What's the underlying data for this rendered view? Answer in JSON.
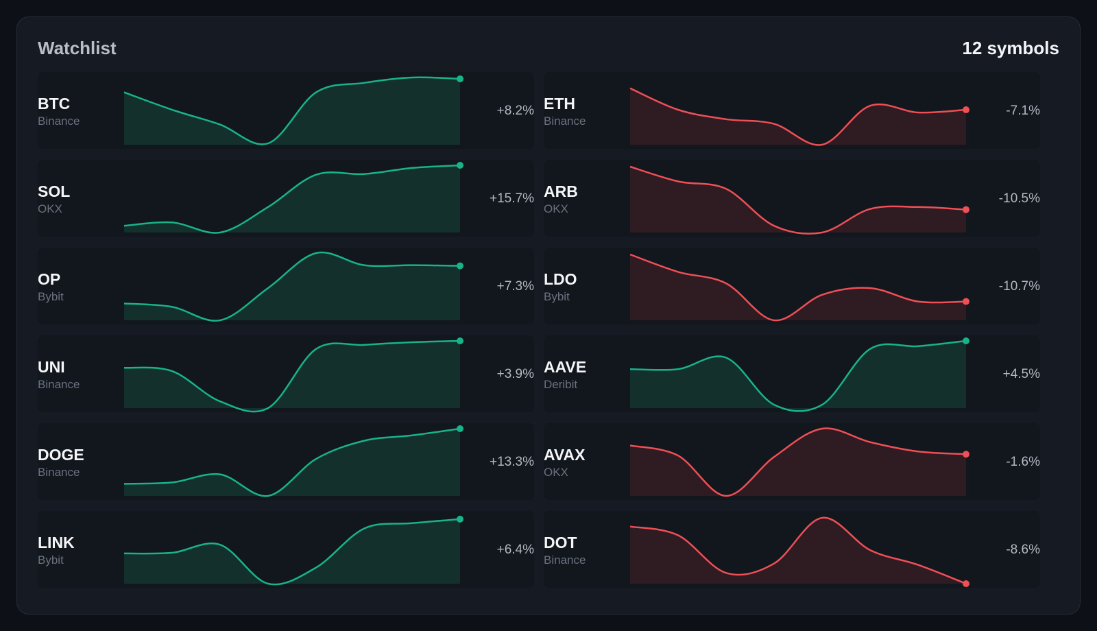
{
  "watchlist": {
    "title": "Watchlist",
    "count_label": "12 symbols",
    "colors": {
      "up": "#19b38a",
      "down": "#ef4f56",
      "up_fill": "#13302d",
      "down_fill": "#2e1c22"
    },
    "rows": [
      {
        "symbol": "BTC",
        "exchange": "Binance",
        "change": "+8.2%",
        "trend": "up",
        "series": [
          0.78,
          0.52,
          0.3,
          0.02,
          0.78,
          0.92,
          1.0,
          0.98
        ]
      },
      {
        "symbol": "ETH",
        "exchange": "Binance",
        "change": "-7.1%",
        "trend": "down",
        "series": [
          0.84,
          0.52,
          0.38,
          0.31,
          0.0,
          0.58,
          0.48,
          0.52
        ]
      },
      {
        "symbol": "SOL",
        "exchange": "OKX",
        "change": "+15.7%",
        "trend": "up",
        "series": [
          0.1,
          0.15,
          0.0,
          0.38,
          0.86,
          0.87,
          0.96,
          1.0
        ]
      },
      {
        "symbol": "ARB",
        "exchange": "OKX",
        "change": "-10.5%",
        "trend": "down",
        "series": [
          0.98,
          0.76,
          0.65,
          0.1,
          0.0,
          0.35,
          0.38,
          0.34
        ]
      },
      {
        "symbol": "OP",
        "exchange": "Bybit",
        "change": "+7.3%",
        "trend": "up",
        "series": [
          0.25,
          0.2,
          0.0,
          0.48,
          1.0,
          0.82,
          0.82,
          0.81
        ]
      },
      {
        "symbol": "LDO",
        "exchange": "Bybit",
        "change": "-10.7%",
        "trend": "down",
        "series": [
          0.98,
          0.72,
          0.55,
          0.0,
          0.38,
          0.48,
          0.28,
          0.28
        ]
      },
      {
        "symbol": "UNI",
        "exchange": "Binance",
        "change": "+3.9%",
        "trend": "up",
        "series": [
          0.6,
          0.55,
          0.1,
          0.0,
          0.88,
          0.94,
          0.98,
          1.0
        ]
      },
      {
        "symbol": "AAVE",
        "exchange": "Deribit",
        "change": "+4.5%",
        "trend": "up",
        "series": [
          0.58,
          0.58,
          0.75,
          0.05,
          0.05,
          0.88,
          0.92,
          1.0
        ]
      },
      {
        "symbol": "DOGE",
        "exchange": "Binance",
        "change": "+13.3%",
        "trend": "up",
        "series": [
          0.18,
          0.2,
          0.32,
          0.0,
          0.55,
          0.82,
          0.9,
          1.0
        ]
      },
      {
        "symbol": "AVAX",
        "exchange": "OKX",
        "change": "-1.6%",
        "trend": "down",
        "series": [
          0.75,
          0.6,
          0.0,
          0.58,
          1.0,
          0.8,
          0.66,
          0.62
        ]
      },
      {
        "symbol": "LINK",
        "exchange": "Bybit",
        "change": "+6.4%",
        "trend": "up",
        "series": [
          0.45,
          0.46,
          0.58,
          0.0,
          0.24,
          0.82,
          0.9,
          0.96
        ]
      },
      {
        "symbol": "DOT",
        "exchange": "Binance",
        "change": "-8.6%",
        "trend": "down",
        "series": [
          0.85,
          0.72,
          0.16,
          0.3,
          0.98,
          0.5,
          0.28,
          0.0
        ]
      }
    ]
  }
}
